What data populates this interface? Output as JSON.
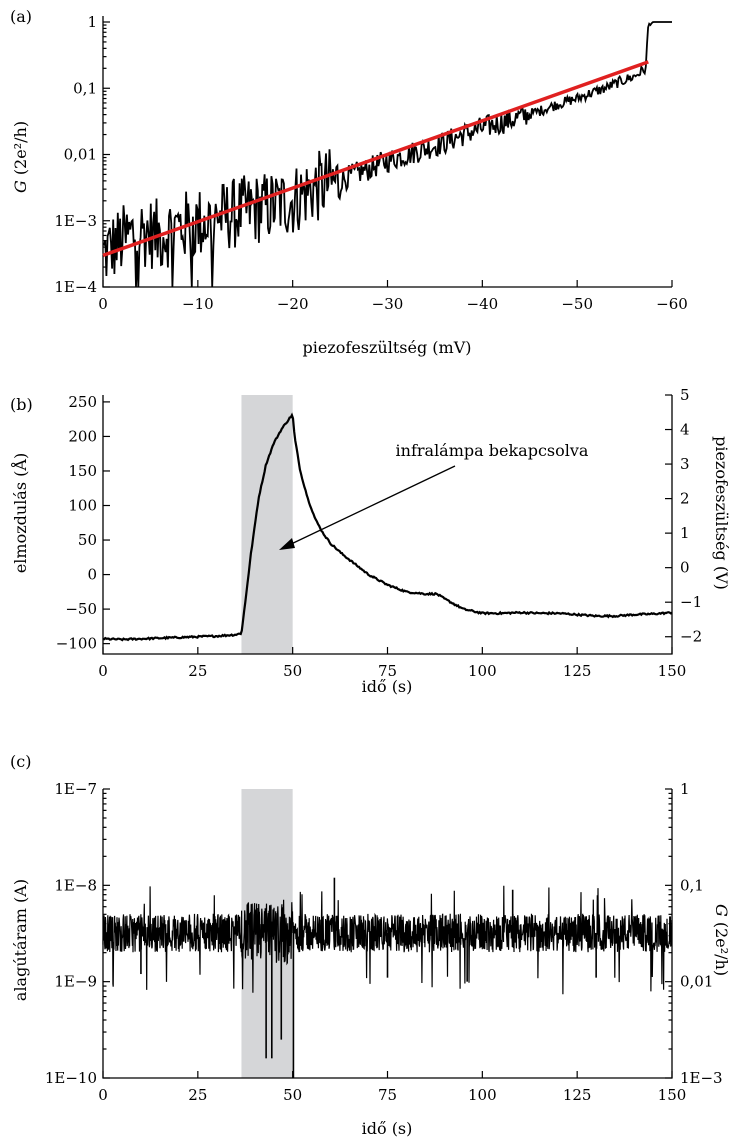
{
  "chart_data": [
    {
      "panel": "(a)",
      "type": "line",
      "xlabel": "piezofeszültség (mV)",
      "ylabel": {
        "italic": "G",
        "rest": " (2e²/h)"
      },
      "xlim": [
        0,
        -60
      ],
      "ylim": [
        0.0001,
        1
      ],
      "yscale": "log",
      "xticks": [
        0,
        -10,
        -20,
        -30,
        -40,
        -50,
        -60
      ],
      "xtick_labels": [
        "0",
        "−10",
        "−20",
        "−30",
        "−40",
        "−50",
        "−60"
      ],
      "yticks": [
        0.0001,
        0.001,
        0.01,
        0.1,
        1
      ],
      "ytick_labels": [
        "1E−4",
        "1E−3",
        "0,01",
        "0,1",
        "1"
      ],
      "series": [
        {
          "color": "#000000",
          "x": [
            0,
            -2,
            -4,
            -6,
            -8,
            -10,
            -12,
            -15,
            -18,
            -20,
            -22,
            -25,
            -28,
            -30,
            -33,
            -36,
            -40,
            -43,
            -46,
            -50,
            -53,
            -56,
            -57.3,
            -57.5,
            -58,
            -60
          ],
          "y": [
            0.0003,
            0.0005,
            0.0007,
            0.0006,
            0.0008,
            0.0009,
            0.0011,
            0.0014,
            0.0017,
            0.002,
            0.003,
            0.004,
            0.006,
            0.008,
            0.011,
            0.015,
            0.025,
            0.033,
            0.045,
            0.07,
            0.1,
            0.15,
            0.2,
            0.9,
            1.0,
            1.2
          ]
        },
        {
          "color": "#e02020",
          "x": [
            0,
            -57.5
          ],
          "y": [
            0.0003,
            0.25
          ]
        }
      ]
    },
    {
      "panel": "(b)",
      "type": "line",
      "xlabel": "idő (s)",
      "ylabel": "elmozdulás (Å)",
      "ylabel_right": "piezofeszültség (V)",
      "xlim": [
        0,
        150
      ],
      "ylim": [
        -115,
        260
      ],
      "ylim_right": [
        -2.5,
        5.0
      ],
      "xticks": [
        0,
        25,
        50,
        75,
        100,
        125,
        150
      ],
      "xtick_labels": [
        "0",
        "25",
        "50",
        "75",
        "100",
        "125",
        "150"
      ],
      "yticks": [
        -100,
        -50,
        0,
        50,
        100,
        150,
        200,
        250
      ],
      "ytick_labels": [
        "−100",
        "−50",
        "0",
        "50",
        "100",
        "150",
        "200",
        "250"
      ],
      "yticks_right": [
        -2,
        -1,
        0,
        1,
        2,
        3,
        4,
        5
      ],
      "ytick_labels_right": [
        "−2",
        "−1",
        "0",
        "1",
        "2",
        "3",
        "4",
        "5"
      ],
      "shaded_span": [
        36.5,
        50
      ],
      "annotation": "infralámpa bekapcsolva",
      "series": [
        {
          "color": "#000000",
          "x": [
            0,
            5,
            10,
            15,
            20,
            25,
            30,
            35,
            36.5,
            37.5,
            39,
            41,
            43,
            45,
            47,
            49,
            50,
            50.5,
            52,
            54,
            56,
            58,
            60,
            63,
            66,
            70,
            75,
            80,
            85,
            88,
            90,
            95,
            100,
            105,
            110,
            115,
            120,
            125,
            130,
            135,
            140,
            145,
            150
          ],
          "y": [
            -93,
            -94,
            -93,
            -92,
            -91,
            -90,
            -89,
            -87,
            -85,
            -40,
            30,
            110,
            160,
            190,
            210,
            225,
            232,
            200,
            150,
            110,
            80,
            60,
            45,
            30,
            17,
            0,
            -15,
            -25,
            -28,
            -28,
            -35,
            -50,
            -56,
            -56,
            -55,
            -56,
            -56,
            -58,
            -60,
            -60,
            -58,
            -57,
            -55
          ]
        }
      ]
    },
    {
      "panel": "(c)",
      "type": "line",
      "xlabel": "idő (s)",
      "ylabel": "alagútáram (A)",
      "ylabel_right": {
        "italic": "G",
        "rest": " (2e²/h)"
      },
      "xlim": [
        0,
        150
      ],
      "ylim": [
        1e-10,
        1e-07
      ],
      "yscale": "log",
      "ylim_right": [
        0.001,
        1
      ],
      "xticks": [
        0,
        25,
        50,
        75,
        100,
        125,
        150
      ],
      "xtick_labels": [
        "0",
        "25",
        "50",
        "75",
        "100",
        "125",
        "150"
      ],
      "yticks": [
        1e-10,
        1e-09,
        1e-08,
        1e-07
      ],
      "ytick_labels": [
        "1E−10",
        "1E−9",
        "1E−8",
        "1E−7"
      ],
      "yticks_right": [
        0.001,
        0.01,
        0.1,
        1
      ],
      "ytick_labels_right": [
        "1E−3",
        "0,01",
        "0,1",
        "1"
      ],
      "shaded_span": [
        36.5,
        50
      ],
      "series": [
        {
          "color": "#000000",
          "baseline": 3.2e-09,
          "x": [
            43,
            44.5,
            47,
            50.2,
            10,
            75,
            96,
            130,
            61,
            108
          ],
          "y": [
            1.6e-10,
            1.6e-10,
            2.5e-10,
            1e-10,
            1.2e-09,
            1.1e-09,
            1e-09,
            1.1e-09,
            1.2e-08,
            9e-09
          ]
        }
      ]
    }
  ]
}
